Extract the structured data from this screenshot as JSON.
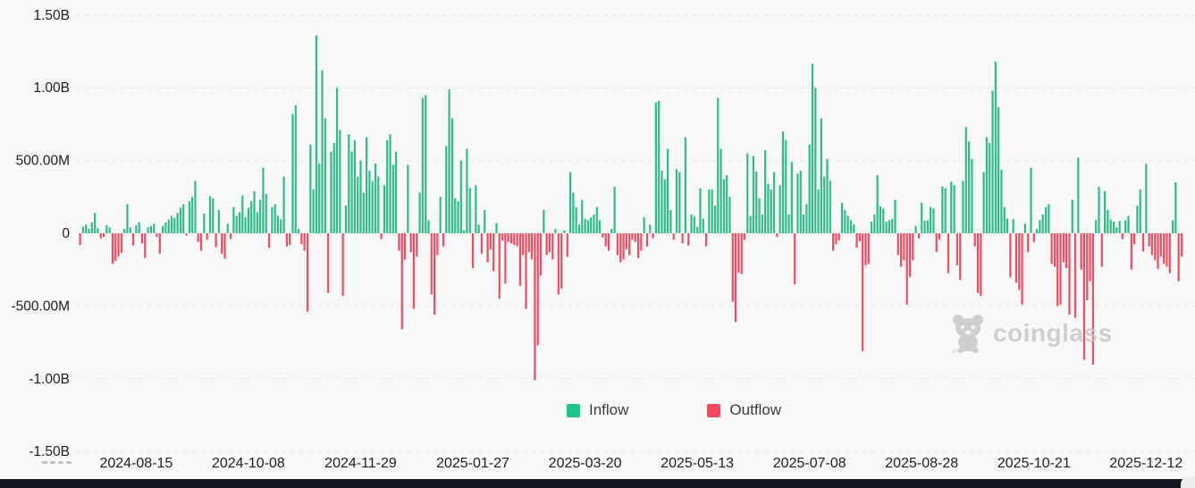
{
  "chart_data": {
    "type": "bar",
    "title": "",
    "unit": "USD (M = millions, B = billions)",
    "values_m": [
      -80,
      45,
      60,
      30,
      75,
      140,
      35,
      -35,
      -25,
      55,
      40,
      -210,
      -190,
      -160,
      -135,
      30,
      200,
      40,
      -85,
      55,
      75,
      -70,
      -170,
      40,
      50,
      65,
      -25,
      -140,
      50,
      75,
      95,
      120,
      105,
      140,
      175,
      200,
      -15,
      220,
      250,
      360,
      -60,
      -120,
      135,
      -45,
      255,
      240,
      -95,
      160,
      -140,
      -175,
      65,
      -40,
      180,
      120,
      145,
      260,
      110,
      175,
      220,
      290,
      145,
      230,
      450,
      270,
      -100,
      180,
      200,
      120,
      95,
      390,
      -90,
      -80,
      820,
      880,
      30,
      -75,
      -120,
      -540,
      610,
      300,
      1360,
      480,
      1120,
      790,
      -410,
      560,
      620,
      1000,
      710,
      -430,
      190,
      680,
      560,
      640,
      390,
      500,
      280,
      660,
      430,
      360,
      480,
      390,
      -40,
      330,
      640,
      680,
      470,
      560,
      -120,
      -660,
      -180,
      470,
      -130,
      -520,
      -160,
      280,
      930,
      950,
      90,
      -420,
      -560,
      -150,
      250,
      -90,
      600,
      990,
      790,
      240,
      220,
      500,
      20,
      580,
      310,
      -240,
      330,
      60,
      -140,
      160,
      -200,
      -110,
      -260,
      70,
      -450,
      -50,
      -345,
      -60,
      -70,
      -80,
      -90,
      -360,
      -150,
      -520,
      -130,
      -180,
      -1010,
      -770,
      -290,
      160,
      -150,
      -130,
      -180,
      30,
      -420,
      -380,
      20,
      -160,
      420,
      280,
      180,
      60,
      230,
      100,
      90,
      110,
      130,
      180,
      90,
      -30,
      -90,
      -120,
      30,
      320,
      -150,
      -200,
      -180,
      -110,
      -150,
      -45,
      -60,
      -170,
      -120,
      110,
      -90,
      60,
      -35,
      900,
      910,
      430,
      370,
      580,
      160,
      -45,
      440,
      420,
      -70,
      660,
      -85,
      130,
      115,
      45,
      310,
      100,
      -90,
      300,
      300,
      190,
      930,
      580,
      370,
      400,
      250,
      -470,
      -610,
      -270,
      -280,
      -45,
      550,
      120,
      530,
      425,
      240,
      130,
      570,
      340,
      300,
      420,
      -25,
      330,
      700,
      640,
      130,
      490,
      -350,
      410,
      430,
      130,
      200,
      610,
      1165,
      1000,
      300,
      790,
      390,
      510,
      360,
      -120,
      -75,
      -50,
      210,
      160,
      120,
      90,
      60,
      -100,
      -55,
      -810,
      -220,
      -210,
      80,
      130,
      400,
      185,
      170,
      80,
      90,
      100,
      230,
      -150,
      -230,
      -185,
      -490,
      -300,
      -185,
      50,
      -35,
      210,
      85,
      90,
      180,
      170,
      -130,
      -45,
      320,
      310,
      -275,
      355,
      330,
      -220,
      -320,
      360,
      730,
      630,
      510,
      -90,
      -410,
      -430,
      420,
      660,
      620,
      980,
      1180,
      865,
      436,
      180,
      100,
      -300,
      98,
      -340,
      -390,
      -490,
      65,
      -130,
      450,
      -60,
      30,
      90,
      130,
      180,
      200,
      -210,
      -230,
      -500,
      -490,
      -200,
      -240,
      -560,
      230,
      -580,
      520,
      -250,
      -870,
      -460,
      -330,
      -903,
      90,
      320,
      -230,
      290,
      160,
      95,
      80,
      40,
      85,
      -40,
      90,
      120,
      -250,
      -75,
      190,
      300,
      -125,
      478,
      -90,
      -150,
      -185,
      -245,
      -160,
      -210,
      -230,
      -275,
      90,
      350,
      -330,
      -160
    ],
    "y_axis": {
      "tick_labels": [
        "1.50B",
        "1.00B",
        "500.00M",
        "0",
        "-500.00M",
        "-1.00B",
        "-1.50B"
      ],
      "tick_values_m": [
        1500,
        1000,
        500,
        0,
        -500,
        -1000,
        -1500
      ],
      "range_m": [
        -1500,
        1500
      ],
      "grid": "dashed"
    },
    "x_axis": {
      "tick_labels": [
        "2024-08-15",
        "2024-10-08",
        "2024-11-29",
        "2025-01-27",
        "2025-03-20",
        "2025-05-13",
        "2025-07-08",
        "2025-08-28",
        "2025-10-21",
        "2025-12-12"
      ],
      "tick_indices": [
        19,
        57,
        95,
        133,
        171,
        209,
        247,
        285,
        323,
        361
      ]
    },
    "legend": [
      {
        "label": "Inflow",
        "color": "#1fc287"
      },
      {
        "label": "Outflow",
        "color": "#f5475d"
      }
    ],
    "legend_position": "bottom-center"
  },
  "watermark": {
    "brand": "coinglass"
  },
  "colors": {
    "background": "#f8f8f8",
    "inflow": "#2ebd85",
    "outflow": "#f5495f",
    "grid": "#e8e8ea",
    "axis_text": "#1f1f1f",
    "legend_text": "#3c3c3c",
    "watermark": "#c9c9c9",
    "bottom_bar": "#14171d"
  }
}
